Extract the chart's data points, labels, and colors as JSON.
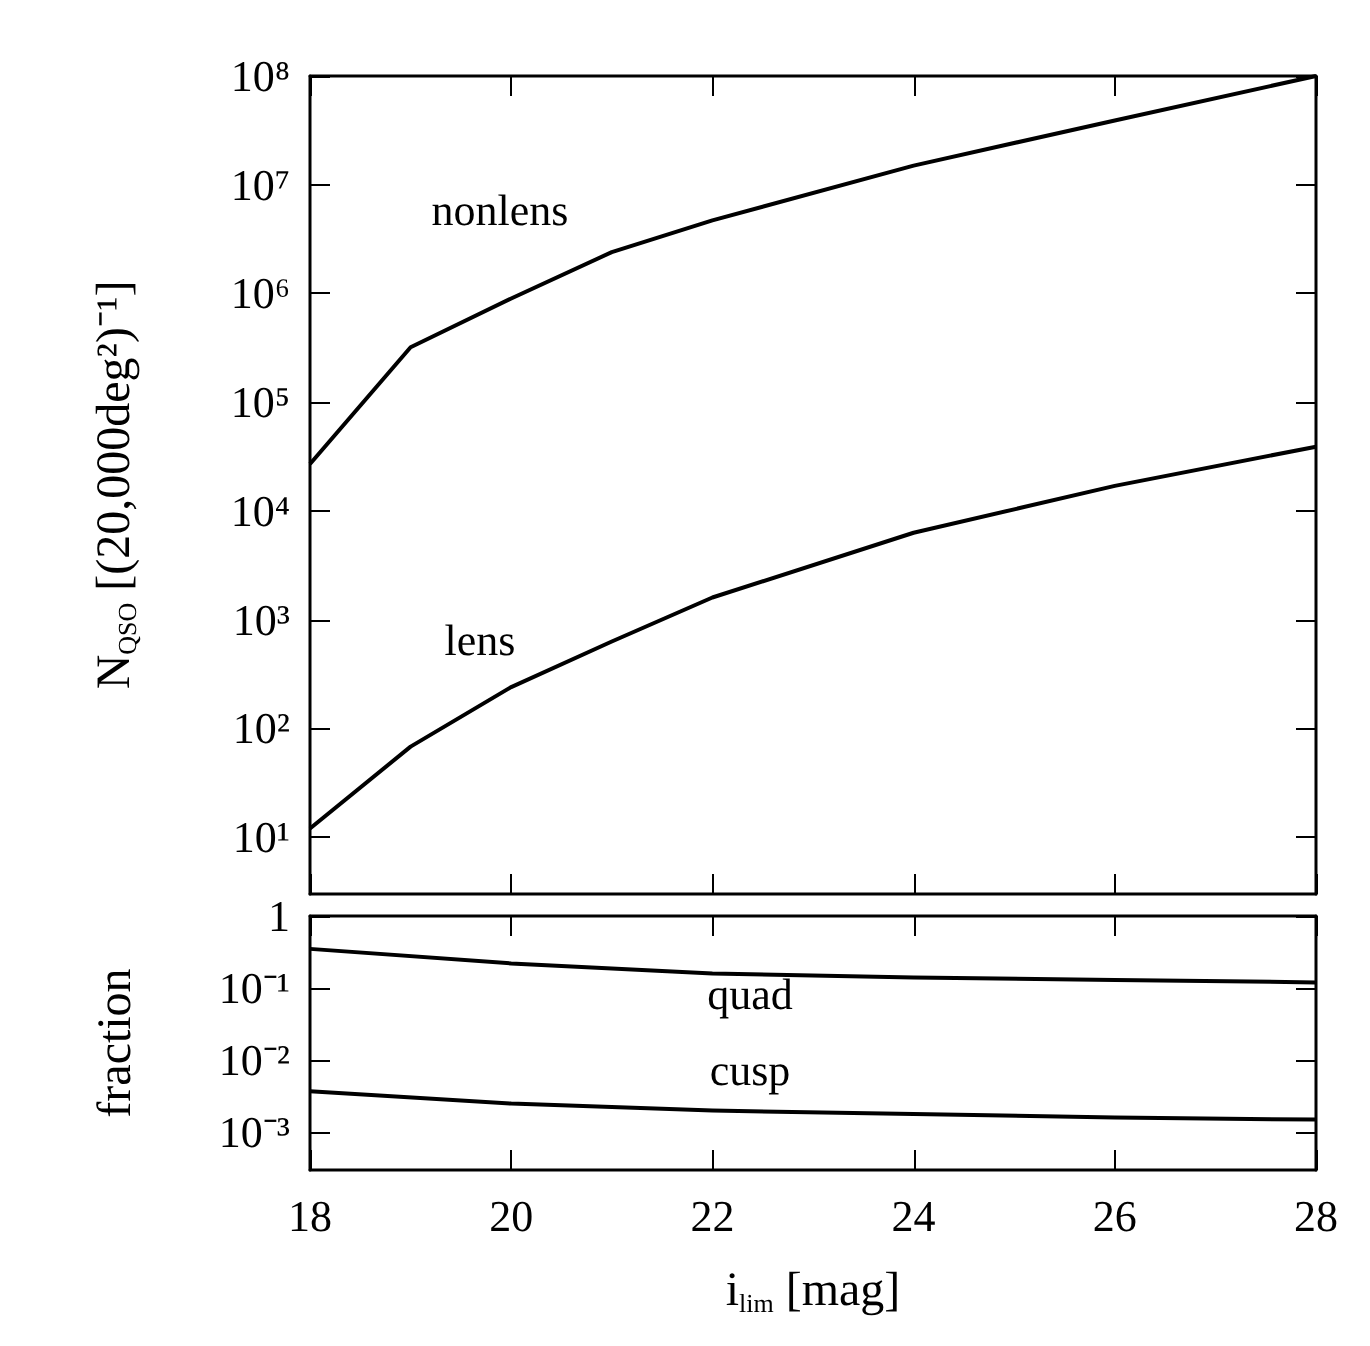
{
  "chart_data": [
    {
      "type": "line",
      "ylabel": "N$_{QSO}$ [(20,000deg²)⁻¹]",
      "x": [
        18,
        19,
        20,
        21,
        22,
        24,
        26,
        28
      ],
      "xlim": [
        18,
        28
      ],
      "xticks": [
        18,
        20,
        22,
        24,
        26,
        28
      ],
      "ylim": [
        3,
        100000000
      ],
      "log": "y",
      "tick_labels": "y",
      "marker": "none",
      "line_style": "solid",
      "yticks": [
        {
          "value": 10,
          "label": "10¹"
        },
        {
          "value": 100,
          "label": "10²"
        },
        {
          "value": 1000,
          "label": "10³"
        },
        {
          "value": 10000,
          "label": "10⁴"
        },
        {
          "value": 100000,
          "label": "10⁵"
        },
        {
          "value": 1000000,
          "label": "10⁶"
        },
        {
          "value": 10000000,
          "label": "10⁷"
        },
        {
          "value": 100000000,
          "label": "10⁸"
        }
      ],
      "series": [
        {
          "color": "#000000",
          "values": [
            27000,
            320000,
            900000,
            2400000,
            4700000,
            15000000,
            39000000,
            100000000
          ]
        },
        {
          "color": "#000000",
          "values": [
            12,
            68,
            240,
            630,
            1600,
            6300,
            17000,
            39000
          ]
        }
      ],
      "annotations": [
        "nonlens",
        "lens"
      ]
    },
    {
      "type": "line",
      "ylabel": "fraction",
      "xlabel": "i$_{lim}$ [mag]",
      "x": [
        18,
        20,
        22,
        24,
        26,
        28
      ],
      "xlim": [
        18,
        28
      ],
      "xticks": [
        18,
        20,
        22,
        24,
        26,
        28
      ],
      "ylim": [
        0.0003,
        1
      ],
      "log": "y",
      "marker": "none",
      "line_style": "solid",
      "yticks": [
        {
          "value": 1,
          "label": "1"
        },
        {
          "value": 0.1,
          "label": "10⁻¹"
        },
        {
          "value": 0.01,
          "label": "10⁻²"
        },
        {
          "value": 0.001,
          "label": "10⁻³"
        }
      ],
      "series": [
        {
          "color": "#000000",
          "values": [
            0.35,
            0.22,
            0.16,
            0.14,
            0.13,
            0.12
          ]
        },
        {
          "color": "#000000",
          "values": [
            0.0037,
            0.0025,
            0.002,
            0.0018,
            0.0016,
            0.0015
          ]
        }
      ],
      "annotations": [
        "quad",
        "cusp"
      ]
    }
  ]
}
